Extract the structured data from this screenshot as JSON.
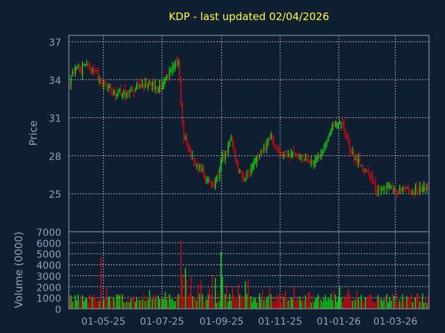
{
  "chart_data": {
    "type": "candlestick",
    "title": "KDP - last updated 02/04/2026",
    "price_panel": {
      "ylabel": "Price",
      "ylim": [
        22.0,
        37.5
      ],
      "yticks": [
        25,
        28,
        31,
        34,
        37
      ]
    },
    "volume_panel": {
      "ylabel": "Volume (0000)",
      "ylim": [
        0,
        7000
      ],
      "yticks": [
        0,
        1000,
        2000,
        3000,
        4000,
        5000,
        6000,
        7000
      ]
    },
    "x_tick_labels": [
      "01-05-25",
      "01-07-25",
      "01-09-25",
      "01-11-25",
      "01-01-26",
      "01-03-26"
    ],
    "x_tick_days": [
      116,
      177,
      239,
      300,
      361,
      420
    ],
    "x_range_days": [
      80,
      455
    ],
    "grid": true,
    "colors": {
      "up": "#00ff00",
      "down": "#ff0000",
      "background": "#0f1f31",
      "title": "#ffff33",
      "axis": "#8fa4bf"
    },
    "price_anchors": [
      [
        80,
        33.8
      ],
      [
        85,
        34.5
      ],
      [
        88,
        35.2
      ],
      [
        92,
        34.6
      ],
      [
        96,
        35.3
      ],
      [
        100,
        35.0
      ],
      [
        104,
        34.6
      ],
      [
        110,
        34.2
      ],
      [
        116,
        33.8
      ],
      [
        122,
        33.3
      ],
      [
        128,
        33.0
      ],
      [
        134,
        32.9
      ],
      [
        140,
        33.0
      ],
      [
        146,
        33.2
      ],
      [
        152,
        33.4
      ],
      [
        158,
        33.7
      ],
      [
        164,
        33.6
      ],
      [
        170,
        33.5
      ],
      [
        175,
        33.3
      ],
      [
        180,
        33.9
      ],
      [
        186,
        34.6
      ],
      [
        191,
        35.2
      ],
      [
        194,
        35.3
      ],
      [
        197,
        32.0
      ],
      [
        199,
        29.5
      ],
      [
        203,
        29.0
      ],
      [
        208,
        28.0
      ],
      [
        214,
        27.2
      ],
      [
        220,
        26.6
      ],
      [
        225,
        25.9
      ],
      [
        230,
        25.6
      ],
      [
        235,
        26.3
      ],
      [
        239,
        27.8
      ],
      [
        244,
        28.3
      ],
      [
        248,
        29.5
      ],
      [
        252,
        28.4
      ],
      [
        256,
        27.1
      ],
      [
        262,
        26.2
      ],
      [
        268,
        26.8
      ],
      [
        274,
        27.6
      ],
      [
        280,
        28.2
      ],
      [
        286,
        28.8
      ],
      [
        290,
        29.6
      ],
      [
        295,
        28.6
      ],
      [
        300,
        28.1
      ],
      [
        306,
        28.0
      ],
      [
        312,
        28.1
      ],
      [
        318,
        27.8
      ],
      [
        324,
        27.6
      ],
      [
        330,
        27.3
      ],
      [
        336,
        27.5
      ],
      [
        342,
        28.2
      ],
      [
        348,
        29.2
      ],
      [
        352,
        30.1
      ],
      [
        356,
        30.5
      ],
      [
        360,
        30.7
      ],
      [
        363,
        30.8
      ],
      [
        367,
        29.8
      ],
      [
        372,
        28.6
      ],
      [
        377,
        27.9
      ],
      [
        383,
        27.4
      ],
      [
        389,
        26.8
      ],
      [
        395,
        26.0
      ],
      [
        400,
        25.3
      ]
    ],
    "candle_count": 252,
    "volume_typical": 1000,
    "volume_spikes": [
      [
        113,
        4000
      ],
      [
        114,
        4700
      ],
      [
        119,
        1900
      ],
      [
        131,
        1300
      ],
      [
        164,
        1700
      ],
      [
        180,
        1500
      ],
      [
        197,
        6200
      ],
      [
        198,
        4500
      ],
      [
        199,
        3100
      ],
      [
        201,
        3700
      ],
      [
        203,
        2700
      ],
      [
        207,
        2900
      ],
      [
        214,
        2200
      ],
      [
        218,
        2600
      ],
      [
        226,
        1900
      ],
      [
        229,
        3100
      ],
      [
        233,
        2800
      ],
      [
        238,
        5200
      ],
      [
        240,
        2900
      ],
      [
        244,
        2100
      ],
      [
        251,
        2000
      ],
      [
        256,
        2300
      ],
      [
        264,
        2500
      ],
      [
        267,
        2700
      ],
      [
        281,
        1700
      ],
      [
        289,
        1900
      ],
      [
        305,
        1600
      ],
      [
        315,
        2000
      ],
      [
        330,
        1500
      ],
      [
        340,
        1300
      ],
      [
        356,
        1600
      ],
      [
        362,
        2000
      ],
      [
        371,
        1800
      ],
      [
        380,
        1700
      ]
    ]
  }
}
